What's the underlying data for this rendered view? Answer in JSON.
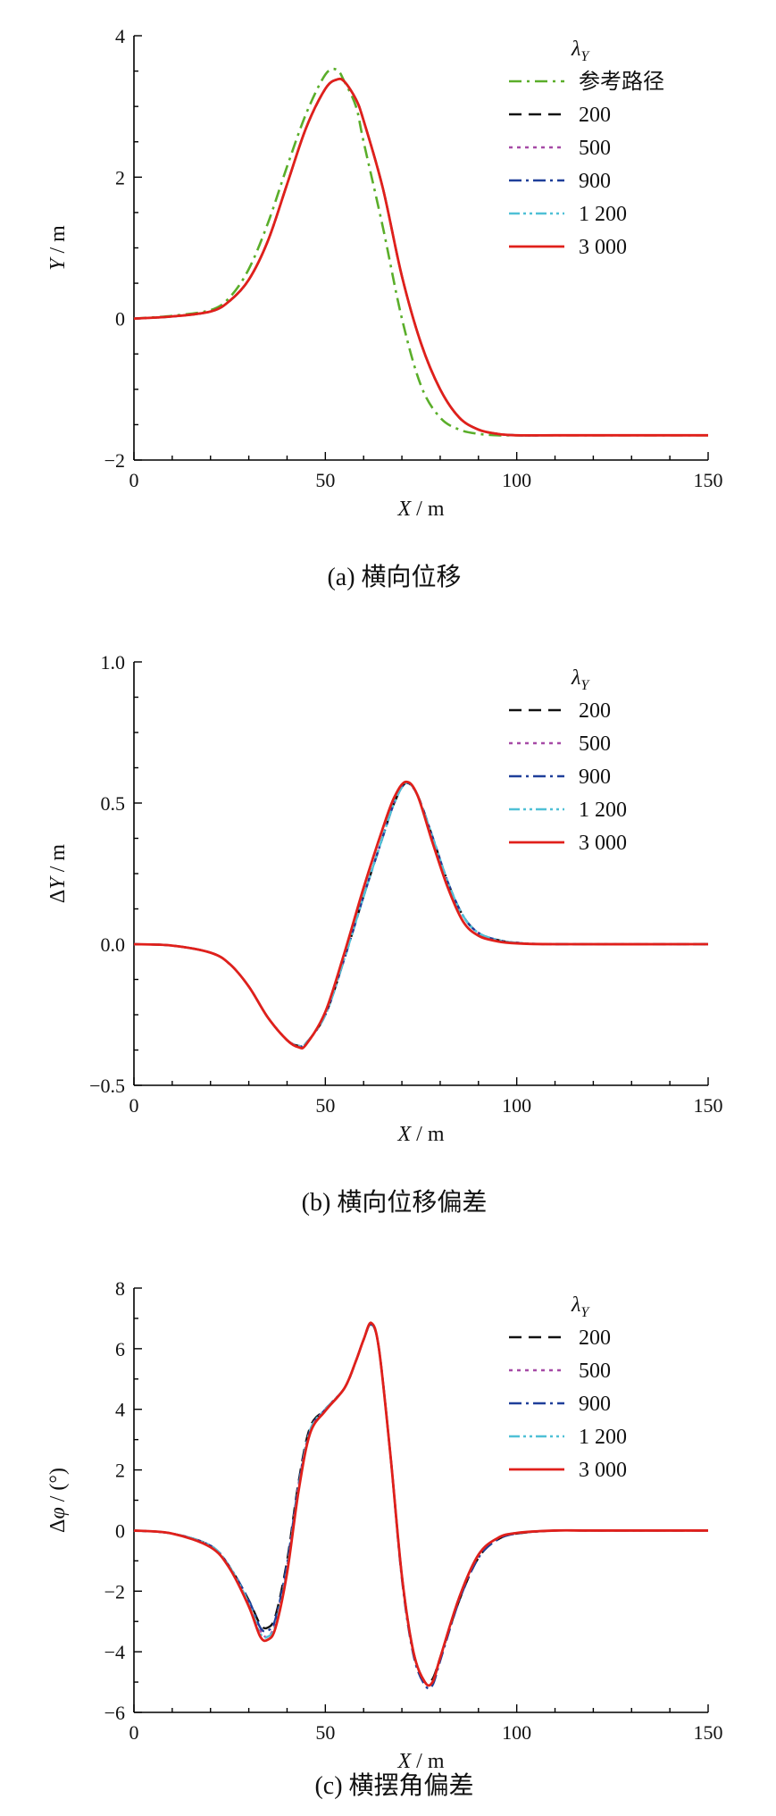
{
  "chart_data": [
    {
      "type": "line",
      "caption": "(a)  横向位移",
      "xlabel_italic": "X",
      "xlabel_unit": " / m",
      "ylabel_italic": "Y",
      "ylabel_unit": " / m",
      "xlim": [
        0,
        150
      ],
      "ylim": [
        -2,
        4
      ],
      "xticks": [
        0,
        50,
        100,
        150
      ],
      "yticks": [
        -2,
        0,
        2,
        4
      ],
      "ytick_labels": [
        "−2",
        "0",
        "2",
        "4"
      ],
      "legend_title_base": "λ",
      "legend_title_sub": "Y",
      "legend_position": "top-right",
      "grid": false,
      "series": [
        {
          "name": "参考路径",
          "color": "#5aae2a",
          "dash": "14 6 3 6",
          "width": 2.6,
          "x": [
            0,
            10,
            20,
            25,
            30,
            35,
            40,
            45,
            50,
            53,
            55,
            58,
            60,
            65,
            70,
            75,
            80,
            85,
            90,
            95,
            100,
            110,
            120,
            150
          ],
          "y": [
            0,
            0.04,
            0.12,
            0.3,
            0.7,
            1.35,
            2.15,
            2.9,
            3.45,
            3.52,
            3.35,
            3.0,
            2.5,
            1.3,
            0.0,
            -0.95,
            -1.4,
            -1.57,
            -1.63,
            -1.65,
            -1.65,
            -1.65,
            -1.65,
            -1.65
          ]
        },
        {
          "name": "200",
          "color": "#111111",
          "dash": "14 8",
          "width": 2.4,
          "x": [
            0,
            10,
            20,
            25,
            30,
            35,
            40,
            45,
            50,
            53,
            55,
            58,
            60,
            65,
            70,
            75,
            80,
            85,
            90,
            95,
            100,
            110,
            120,
            150
          ],
          "y": [
            0,
            0.03,
            0.1,
            0.25,
            0.55,
            1.1,
            1.9,
            2.7,
            3.25,
            3.38,
            3.35,
            3.1,
            2.8,
            1.85,
            0.6,
            -0.35,
            -1.0,
            -1.4,
            -1.57,
            -1.63,
            -1.65,
            -1.65,
            -1.65,
            -1.65
          ]
        },
        {
          "name": "500",
          "color": "#a64aa6",
          "dash": "4 5",
          "width": 2.4,
          "x": [
            0,
            10,
            20,
            25,
            30,
            35,
            40,
            45,
            50,
            53,
            55,
            58,
            60,
            65,
            70,
            75,
            80,
            85,
            90,
            95,
            100,
            110,
            120,
            150
          ],
          "y": [
            0,
            0.03,
            0.1,
            0.25,
            0.55,
            1.1,
            1.9,
            2.7,
            3.25,
            3.38,
            3.35,
            3.1,
            2.8,
            1.85,
            0.6,
            -0.35,
            -1.0,
            -1.4,
            -1.57,
            -1.63,
            -1.65,
            -1.65,
            -1.65,
            -1.65
          ]
        },
        {
          "name": "900",
          "color": "#1f3f9a",
          "dash": "14 5 3 5",
          "width": 2.4,
          "x": [
            0,
            10,
            20,
            25,
            30,
            35,
            40,
            45,
            50,
            53,
            55,
            58,
            60,
            65,
            70,
            75,
            80,
            85,
            90,
            95,
            100,
            110,
            120,
            150
          ],
          "y": [
            0,
            0.03,
            0.1,
            0.25,
            0.55,
            1.1,
            1.9,
            2.7,
            3.25,
            3.38,
            3.35,
            3.1,
            2.8,
            1.85,
            0.6,
            -0.35,
            -1.0,
            -1.4,
            -1.57,
            -1.63,
            -1.65,
            -1.65,
            -1.65,
            -1.65
          ]
        },
        {
          "name": "1 200",
          "color": "#4fc0d6",
          "dash": "12 4 3 4 3 4",
          "width": 2.4,
          "x": [
            0,
            10,
            20,
            25,
            30,
            35,
            40,
            45,
            50,
            53,
            55,
            58,
            60,
            65,
            70,
            75,
            80,
            85,
            90,
            95,
            100,
            110,
            120,
            150
          ],
          "y": [
            0,
            0.03,
            0.1,
            0.25,
            0.55,
            1.1,
            1.9,
            2.7,
            3.25,
            3.38,
            3.35,
            3.1,
            2.8,
            1.85,
            0.6,
            -0.35,
            -1.0,
            -1.4,
            -1.57,
            -1.63,
            -1.65,
            -1.65,
            -1.65,
            -1.65
          ]
        },
        {
          "name": "3 000",
          "color": "#e0201b",
          "dash": "",
          "width": 2.8,
          "x": [
            0,
            10,
            20,
            25,
            30,
            35,
            40,
            45,
            50,
            53,
            55,
            58,
            60,
            65,
            70,
            75,
            80,
            85,
            90,
            95,
            100,
            110,
            120,
            150
          ],
          "y": [
            0,
            0.03,
            0.1,
            0.25,
            0.55,
            1.1,
            1.9,
            2.7,
            3.25,
            3.38,
            3.35,
            3.1,
            2.8,
            1.85,
            0.6,
            -0.35,
            -1.0,
            -1.4,
            -1.57,
            -1.63,
            -1.65,
            -1.65,
            -1.65,
            -1.65
          ]
        }
      ]
    },
    {
      "type": "line",
      "caption": "(b)  横向位移偏差",
      "xlabel_italic": "X",
      "xlabel_unit": " / m",
      "ylabel_prefix": "Δ",
      "ylabel_italic": "Y",
      "ylabel_unit": " / m",
      "xlim": [
        0,
        150
      ],
      "ylim": [
        -0.5,
        1.0
      ],
      "xticks": [
        0,
        50,
        100,
        150
      ],
      "yticks": [
        -0.5,
        0,
        0.5,
        1.0
      ],
      "ytick_labels": [
        "−0.5",
        "0.0",
        "0.5",
        "1.0"
      ],
      "legend_title_base": "λ",
      "legend_title_sub": "Y",
      "legend_position": "top-right",
      "grid": false,
      "series": [
        {
          "name": "200",
          "color": "#111111",
          "dash": "14 8",
          "width": 2.4,
          "x": [
            0,
            10,
            20,
            25,
            30,
            35,
            40,
            43,
            45,
            50,
            55,
            60,
            65,
            68,
            71,
            74,
            78,
            82,
            86,
            90,
            95,
            100,
            110,
            150
          ],
          "y": [
            0,
            -0.005,
            -0.03,
            -0.07,
            -0.15,
            -0.26,
            -0.34,
            -0.36,
            -0.35,
            -0.25,
            -0.05,
            0.17,
            0.38,
            0.5,
            0.57,
            0.53,
            0.38,
            0.22,
            0.1,
            0.04,
            0.015,
            0.005,
            0,
            0
          ]
        },
        {
          "name": "500",
          "color": "#a64aa6",
          "dash": "4 5",
          "width": 2.4,
          "x": [
            0,
            10,
            20,
            25,
            30,
            35,
            40,
            43,
            45,
            50,
            55,
            60,
            65,
            68,
            71,
            74,
            78,
            82,
            86,
            90,
            95,
            100,
            110,
            150
          ],
          "y": [
            0,
            -0.005,
            -0.03,
            -0.07,
            -0.15,
            -0.26,
            -0.34,
            -0.36,
            -0.35,
            -0.25,
            -0.05,
            0.17,
            0.38,
            0.5,
            0.57,
            0.53,
            0.38,
            0.22,
            0.1,
            0.04,
            0.015,
            0.005,
            0,
            0
          ]
        },
        {
          "name": "900",
          "color": "#1f3f9a",
          "dash": "14 5 3 5",
          "width": 2.4,
          "x": [
            0,
            10,
            20,
            25,
            30,
            35,
            40,
            43,
            45,
            50,
            55,
            60,
            65,
            68,
            71,
            74,
            78,
            82,
            86,
            90,
            95,
            100,
            110,
            150
          ],
          "y": [
            0,
            -0.005,
            -0.03,
            -0.07,
            -0.15,
            -0.26,
            -0.34,
            -0.36,
            -0.35,
            -0.25,
            -0.05,
            0.17,
            0.38,
            0.5,
            0.57,
            0.53,
            0.38,
            0.22,
            0.1,
            0.04,
            0.015,
            0.005,
            0,
            0
          ]
        },
        {
          "name": "1 200",
          "color": "#4fc0d6",
          "dash": "12 4 3 4 3 4",
          "width": 2.4,
          "x": [
            0,
            10,
            20,
            25,
            30,
            35,
            40,
            43,
            45,
            50,
            55,
            60,
            65,
            68,
            71,
            74,
            78,
            82,
            86,
            90,
            95,
            100,
            110,
            150
          ],
          "y": [
            0,
            -0.005,
            -0.03,
            -0.07,
            -0.15,
            -0.26,
            -0.34,
            -0.36,
            -0.35,
            -0.25,
            -0.05,
            0.17,
            0.38,
            0.5,
            0.57,
            0.53,
            0.38,
            0.22,
            0.1,
            0.04,
            0.015,
            0.005,
            0,
            0
          ]
        },
        {
          "name": "3 000",
          "color": "#e0201b",
          "dash": "",
          "width": 2.8,
          "x": [
            0,
            10,
            20,
            25,
            30,
            35,
            40,
            43,
            45,
            50,
            55,
            60,
            65,
            68,
            71,
            74,
            78,
            82,
            86,
            90,
            95,
            100,
            110,
            150
          ],
          "y": [
            0,
            -0.005,
            -0.03,
            -0.07,
            -0.15,
            -0.26,
            -0.34,
            -0.365,
            -0.355,
            -0.24,
            -0.03,
            0.2,
            0.41,
            0.52,
            0.575,
            0.53,
            0.36,
            0.2,
            0.08,
            0.03,
            0.01,
            0.003,
            0,
            0
          ]
        }
      ]
    },
    {
      "type": "line",
      "caption": "(c)  横摆角偏差",
      "xlabel_italic": "X",
      "xlabel_unit": " / m",
      "ylabel_prefix": "Δ",
      "ylabel_italic": "φ",
      "ylabel_unit": " / (°)",
      "xlim": [
        0,
        150
      ],
      "ylim": [
        -6,
        8
      ],
      "xticks": [
        0,
        50,
        100,
        150
      ],
      "yticks": [
        -6,
        -4,
        -2,
        0,
        2,
        4,
        6,
        8
      ],
      "ytick_labels": [
        "−6",
        "−4",
        "−2",
        "0",
        "2",
        "4",
        "6",
        "8"
      ],
      "legend_title_base": "λ",
      "legend_title_sub": "Y",
      "legend_position": "top-right",
      "grid": false,
      "series": [
        {
          "name": "200",
          "color": "#111111",
          "dash": "14 8",
          "width": 2.4,
          "x": [
            0,
            10,
            20,
            25,
            30,
            33,
            35,
            37,
            40,
            43,
            46,
            50,
            55,
            58,
            60,
            62,
            64,
            67,
            70,
            73,
            76,
            78,
            80,
            85,
            90,
            95,
            100,
            110,
            120,
            150
          ],
          "y": [
            0,
            -0.1,
            -0.5,
            -1.2,
            -2.3,
            -3.1,
            -3.2,
            -2.8,
            -1.0,
            1.6,
            3.4,
            4.0,
            4.7,
            5.6,
            6.3,
            6.8,
            6.0,
            2.5,
            -1.5,
            -4.0,
            -5.0,
            -4.9,
            -4.2,
            -2.3,
            -0.9,
            -0.3,
            -0.1,
            0,
            0,
            0
          ]
        },
        {
          "name": "500",
          "color": "#a64aa6",
          "dash": "4 5",
          "width": 2.4,
          "x": [
            0,
            10,
            20,
            25,
            30,
            33,
            35,
            37,
            40,
            43,
            46,
            50,
            55,
            58,
            60,
            62,
            64,
            67,
            70,
            73,
            76,
            78,
            80,
            85,
            90,
            95,
            100,
            110,
            120,
            150
          ],
          "y": [
            0,
            -0.1,
            -0.5,
            -1.2,
            -2.4,
            -3.3,
            -3.5,
            -3.0,
            -1.2,
            1.5,
            3.3,
            4.0,
            4.7,
            5.6,
            6.3,
            6.8,
            6.0,
            2.5,
            -1.5,
            -4.0,
            -5.0,
            -5.0,
            -4.2,
            -2.2,
            -0.8,
            -0.25,
            -0.08,
            0,
            0,
            0
          ]
        },
        {
          "name": "900",
          "color": "#1f3f9a",
          "dash": "14 5 3 5",
          "width": 2.4,
          "x": [
            0,
            10,
            20,
            25,
            30,
            33,
            35,
            37,
            40,
            43,
            46,
            50,
            55,
            58,
            60,
            62,
            64,
            67,
            70,
            73,
            76,
            78,
            80,
            85,
            90,
            95,
            100,
            110,
            120,
            150
          ],
          "y": [
            0,
            -0.1,
            -0.5,
            -1.2,
            -2.3,
            -3.2,
            -3.3,
            -2.9,
            -1.1,
            1.5,
            3.3,
            4.0,
            4.7,
            5.6,
            6.3,
            6.8,
            6.0,
            2.5,
            -1.6,
            -4.1,
            -5.1,
            -5.1,
            -4.3,
            -2.3,
            -0.9,
            -0.3,
            -0.1,
            0,
            0,
            0
          ]
        },
        {
          "name": "1 200",
          "color": "#4fc0d6",
          "dash": "12 4 3 4 3 4",
          "width": 2.4,
          "x": [
            0,
            10,
            20,
            25,
            30,
            33,
            35,
            37,
            40,
            43,
            46,
            50,
            55,
            58,
            60,
            62,
            64,
            67,
            70,
            73,
            76,
            78,
            80,
            85,
            90,
            95,
            100,
            110,
            120,
            150
          ],
          "y": [
            0,
            -0.1,
            -0.5,
            -1.2,
            -2.4,
            -3.4,
            -3.5,
            -3.1,
            -1.3,
            1.4,
            3.3,
            4.0,
            4.7,
            5.6,
            6.3,
            6.8,
            6.0,
            2.5,
            -1.5,
            -4.0,
            -5.0,
            -5.0,
            -4.2,
            -2.2,
            -0.8,
            -0.25,
            -0.08,
            0,
            0,
            0
          ]
        },
        {
          "name": "3 000",
          "color": "#e0201b",
          "dash": "",
          "width": 2.8,
          "x": [
            0,
            10,
            20,
            25,
            30,
            33,
            35,
            37,
            40,
            43,
            46,
            50,
            55,
            58,
            60,
            62,
            64,
            67,
            70,
            73,
            76,
            78,
            80,
            85,
            90,
            95,
            100,
            110,
            120,
            150
          ],
          "y": [
            0,
            -0.1,
            -0.55,
            -1.25,
            -2.5,
            -3.5,
            -3.6,
            -3.2,
            -1.4,
            1.3,
            3.2,
            3.95,
            4.7,
            5.6,
            6.3,
            6.85,
            6.0,
            2.5,
            -1.5,
            -4.0,
            -5.0,
            -5.0,
            -4.2,
            -2.2,
            -0.8,
            -0.25,
            -0.08,
            0,
            0,
            0
          ]
        }
      ]
    }
  ]
}
